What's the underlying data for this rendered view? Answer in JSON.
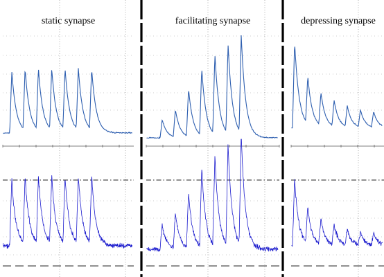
{
  "chart_data": [
    {
      "type": "line",
      "title": "static synapse",
      "panels": [
        "upper",
        "lower"
      ],
      "pulses": 7,
      "upper_amplitudes": [
        1.0,
        1.0,
        1.0,
        1.0,
        1.0,
        1.0,
        1.0
      ],
      "lower_amplitudes": [
        1.0,
        1.0,
        1.0,
        1.0,
        1.0,
        1.0,
        1.0
      ]
    },
    {
      "type": "line",
      "title": "facilitating synapse",
      "panels": [
        "upper",
        "lower"
      ],
      "pulses": 7,
      "upper_amplitudes": [
        0.18,
        0.27,
        0.47,
        0.66,
        0.79,
        0.88,
        0.96
      ],
      "lower_amplitudes": [
        0.22,
        0.32,
        0.5,
        0.72,
        0.82,
        0.92,
        1.0
      ]
    },
    {
      "type": "line",
      "title": "depressing synapse",
      "panels": [
        "upper",
        "lower"
      ],
      "pulses": 7,
      "upper_amplitudes": [
        1.0,
        0.55,
        0.38,
        0.3,
        0.24,
        0.2,
        0.18
      ],
      "lower_amplitudes": [
        1.0,
        0.55,
        0.38,
        0.3,
        0.24,
        0.2,
        0.18
      ]
    }
  ],
  "colors": {
    "trace_upper": "#2e5fb0",
    "trace_lower": "#1a1acd",
    "grid": "#888888",
    "divider": "#000000"
  }
}
